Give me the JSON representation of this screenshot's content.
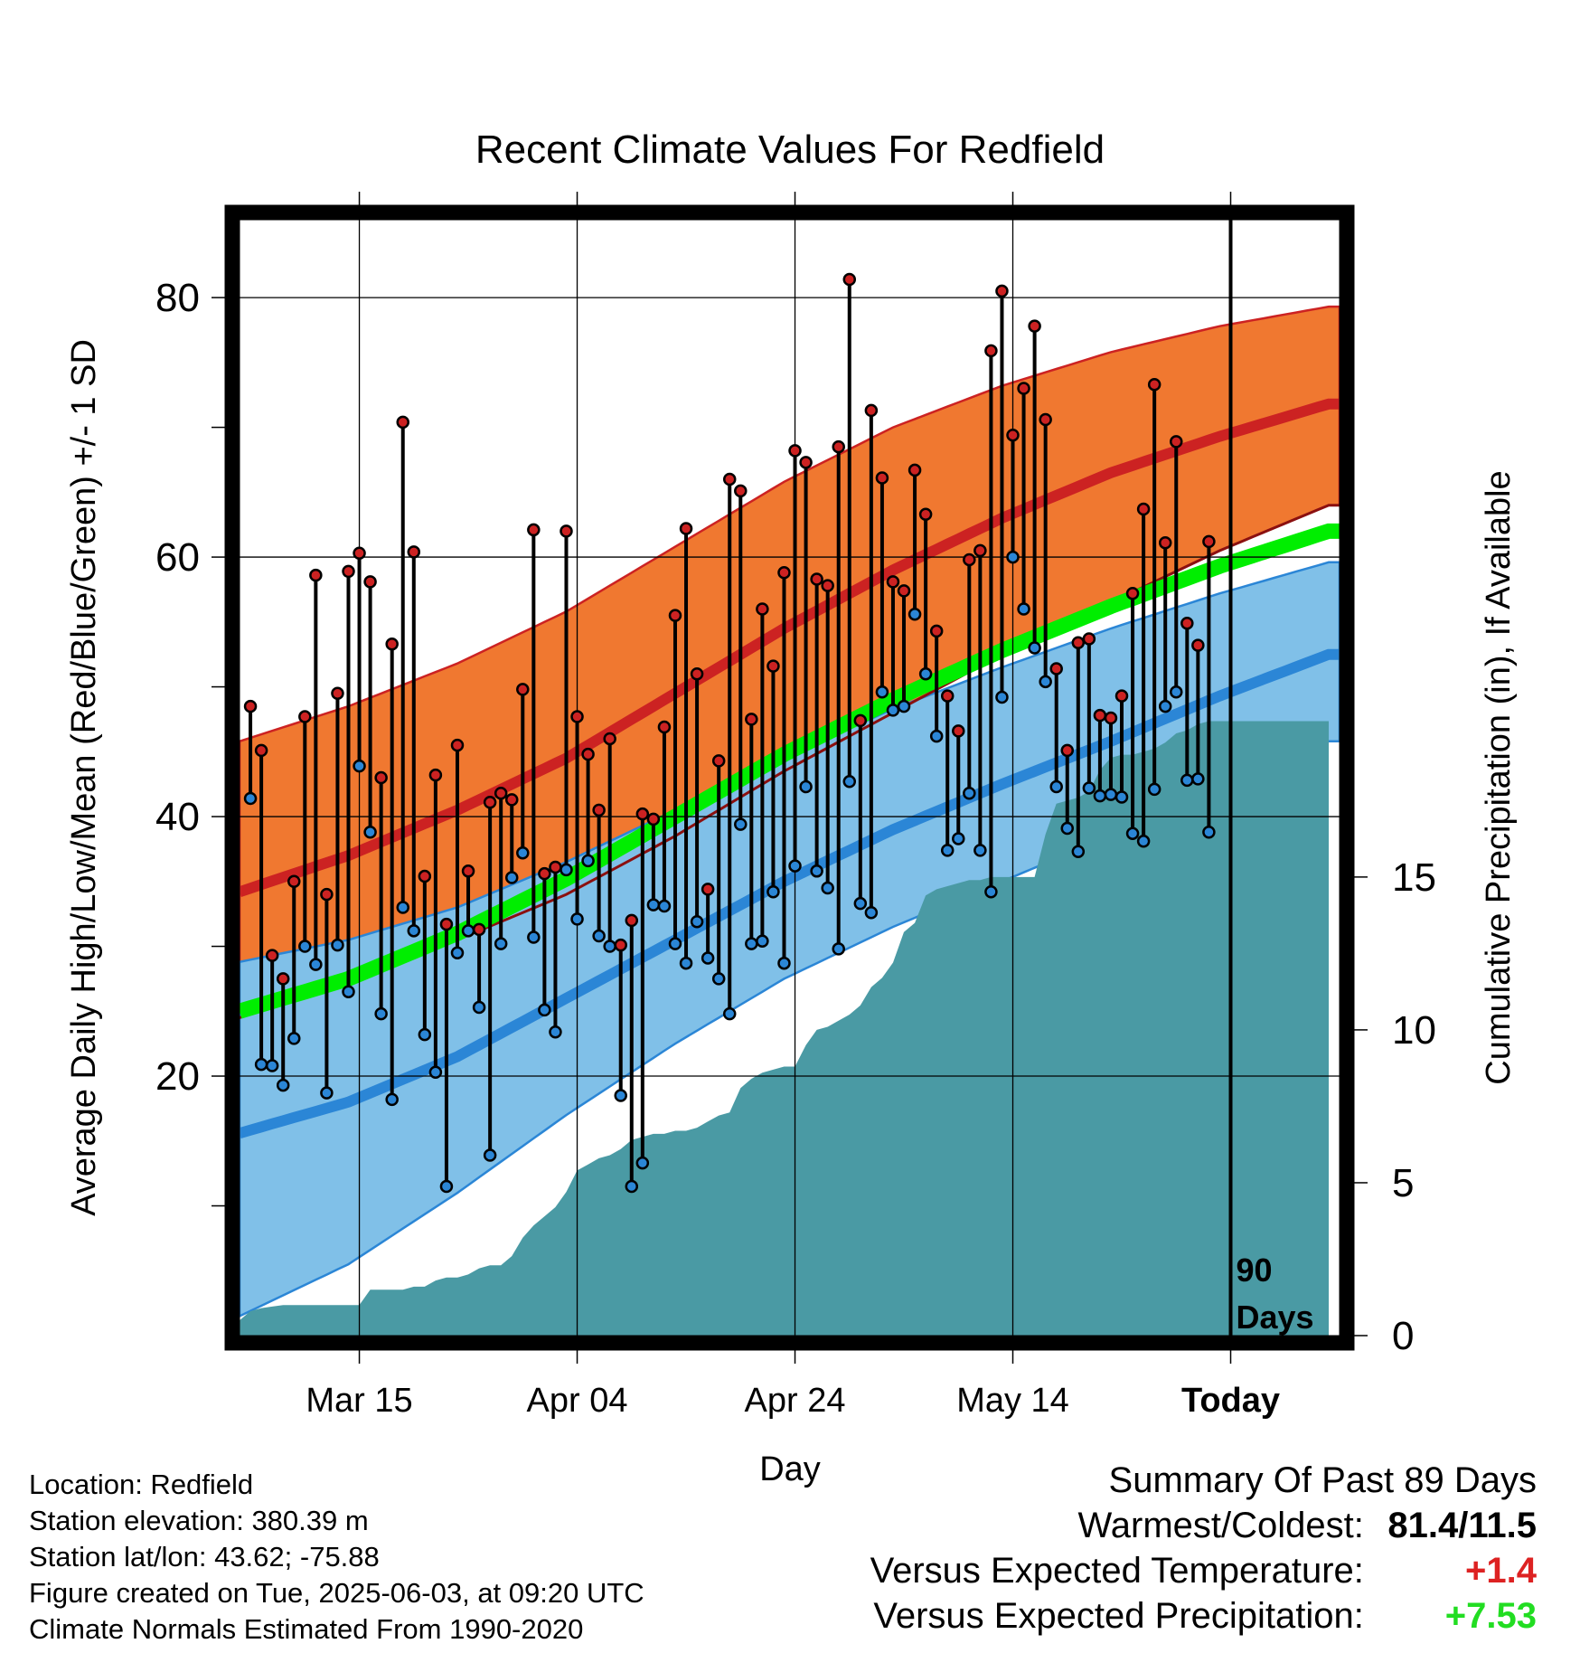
{
  "chart_data": {
    "type": "line",
    "title": "Recent Climate Values For Redfield",
    "xlabel": "Day",
    "ylabel": "Average Daily High/Low/Mean (Red/Blue/Green) +/- 1 SD",
    "y2label": "Cumulative Precipitation (in), If Available",
    "x_tick_labels": [
      "Mar 15",
      "Apr 04",
      "Apr 24",
      "May 14",
      "Today"
    ],
    "x_tick_days": [
      11,
      31,
      51,
      71,
      91
    ],
    "xlim": [
      0,
      101
    ],
    "ylim": [
      0,
      86
    ],
    "y_ticks": [
      20,
      40,
      60,
      80
    ],
    "y2lim": [
      0,
      36.5
    ],
    "y2_ticks": [
      0,
      5,
      10,
      15
    ],
    "today_day": 91,
    "today_annotation": "90\nDays",
    "grid": true,
    "normals_start_day": 0,
    "normals": {
      "days": [
        0,
        10,
        20,
        30,
        40,
        50,
        60,
        70,
        80,
        90,
        100
      ],
      "high_mean": [
        34.2,
        37.0,
        40.5,
        44.5,
        49.5,
        54.5,
        59.0,
        63.0,
        66.5,
        69.3,
        71.8
      ],
      "high_upper": [
        45.8,
        48.5,
        51.8,
        55.8,
        60.8,
        65.8,
        70.0,
        73.2,
        75.8,
        77.8,
        79.3
      ],
      "high_lower": [
        24.5,
        27.5,
        30.5,
        34.0,
        38.5,
        43.5,
        48.0,
        52.5,
        56.5,
        60.5,
        64.0
      ],
      "low_mean": [
        15.6,
        18.0,
        21.5,
        26.0,
        30.5,
        35.0,
        39.0,
        42.5,
        45.8,
        49.3,
        52.5
      ],
      "low_upper": [
        28.8,
        30.5,
        33.0,
        36.5,
        40.5,
        44.5,
        48.3,
        51.5,
        54.5,
        57.2,
        59.6
      ],
      "low_lower": [
        1.5,
        5.5,
        11.0,
        17.0,
        22.5,
        27.5,
        31.5,
        35.0,
        38.5,
        42.0,
        45.8
      ],
      "avg_mean": [
        25.0,
        27.5,
        31.0,
        35.2,
        40.0,
        44.8,
        49.0,
        52.8,
        56.2,
        59.3,
        62.0
      ]
    },
    "series": [
      {
        "name": "High",
        "color": "#cc2222",
        "x": [
          1,
          2,
          3,
          4,
          5,
          6,
          7,
          8,
          9,
          10,
          11,
          12,
          13,
          14,
          15,
          16,
          17,
          18,
          19,
          20,
          21,
          22,
          23,
          24,
          25,
          26,
          27,
          28,
          29,
          30,
          31,
          32,
          33,
          34,
          35,
          36,
          37,
          38,
          39,
          40,
          41,
          42,
          43,
          44,
          45,
          46,
          47,
          48,
          49,
          50,
          51,
          52,
          53,
          54,
          55,
          56,
          57,
          58,
          59,
          60,
          61,
          62,
          63,
          64,
          65,
          66,
          67,
          68,
          69,
          70,
          71,
          72,
          73,
          74,
          75,
          76,
          77,
          78,
          79,
          80,
          81,
          82,
          83,
          84,
          85,
          86,
          87,
          88,
          89
        ],
        "values": [
          48.5,
          45.1,
          29.3,
          27.5,
          35.0,
          47.7,
          58.6,
          34.0,
          49.5,
          58.9,
          60.3,
          58.1,
          43.0,
          53.3,
          70.4,
          60.4,
          35.4,
          43.2,
          31.7,
          45.5,
          35.8,
          31.3,
          41.1,
          41.8,
          41.3,
          49.8,
          62.1,
          35.6,
          36.1,
          62.0,
          47.7,
          44.8,
          40.5,
          46.0,
          30.1,
          32.0,
          40.2,
          39.8,
          46.9,
          55.5,
          62.2,
          51.0,
          34.4,
          44.3,
          66.0,
          65.1,
          47.5,
          56.0,
          51.6,
          58.8,
          68.2,
          67.3,
          58.3,
          57.8,
          68.5,
          81.4,
          47.4,
          71.3,
          66.1,
          58.1,
          57.4,
          66.7,
          63.3,
          54.3,
          49.3,
          46.6,
          59.8,
          60.5,
          75.9,
          80.5,
          69.4,
          73.0,
          77.8,
          70.6,
          51.4,
          45.1,
          53.4,
          53.7,
          47.8,
          47.6,
          49.3,
          57.2,
          63.7,
          73.3,
          61.1,
          68.9,
          54.9,
          53.2,
          61.2
        ]
      },
      {
        "name": "Low",
        "color": "#2b86d6",
        "x": [
          1,
          2,
          3,
          4,
          5,
          6,
          7,
          8,
          9,
          10,
          11,
          12,
          13,
          14,
          15,
          16,
          17,
          18,
          19,
          20,
          21,
          22,
          23,
          24,
          25,
          26,
          27,
          28,
          29,
          30,
          31,
          32,
          33,
          34,
          35,
          36,
          37,
          38,
          39,
          40,
          41,
          42,
          43,
          44,
          45,
          46,
          47,
          48,
          49,
          50,
          51,
          52,
          53,
          54,
          55,
          56,
          57,
          58,
          59,
          60,
          61,
          62,
          63,
          64,
          65,
          66,
          67,
          68,
          69,
          70,
          71,
          72,
          73,
          74,
          75,
          76,
          77,
          78,
          79,
          80,
          81,
          82,
          83,
          84,
          85,
          86,
          87,
          88,
          89
        ],
        "values": [
          41.4,
          20.9,
          20.8,
          19.3,
          22.9,
          30.0,
          28.6,
          18.7,
          30.1,
          26.5,
          43.9,
          38.8,
          24.8,
          18.2,
          33.0,
          31.2,
          23.2,
          20.3,
          11.5,
          29.5,
          31.2,
          25.3,
          13.9,
          30.2,
          35.3,
          37.2,
          30.7,
          25.1,
          23.4,
          35.9,
          32.1,
          36.6,
          30.8,
          30.0,
          18.5,
          11.5,
          13.3,
          33.2,
          33.1,
          30.2,
          28.7,
          31.9,
          29.1,
          27.5,
          24.8,
          39.4,
          30.2,
          30.4,
          34.2,
          28.7,
          36.2,
          42.3,
          35.8,
          34.5,
          29.8,
          42.7,
          33.3,
          32.6,
          49.6,
          48.2,
          48.5,
          55.6,
          51.0,
          46.2,
          37.4,
          38.3,
          41.8,
          37.4,
          34.2,
          49.2,
          60.0,
          56.0,
          53.0,
          50.4,
          42.3,
          39.1,
          37.3,
          42.2,
          41.6,
          41.7,
          41.5,
          38.7,
          38.1,
          42.1,
          48.5,
          49.6,
          42.8,
          42.9,
          38.8
        ]
      }
    ],
    "precip": {
      "name": "Cumulative Precipitation",
      "color": "#4a9aa4",
      "x": [
        0,
        1,
        2,
        3,
        4,
        5,
        6,
        7,
        8,
        9,
        10,
        11,
        12,
        13,
        14,
        15,
        16,
        17,
        18,
        19,
        20,
        21,
        22,
        23,
        24,
        25,
        26,
        27,
        28,
        29,
        30,
        31,
        32,
        33,
        34,
        35,
        36,
        37,
        38,
        39,
        40,
        41,
        42,
        43,
        44,
        45,
        46,
        47,
        48,
        49,
        50,
        51,
        52,
        53,
        54,
        55,
        56,
        57,
        58,
        59,
        60,
        61,
        62,
        63,
        64,
        65,
        66,
        67,
        68,
        69,
        70,
        71,
        72,
        73,
        74,
        75,
        76,
        77,
        78,
        79,
        80,
        81,
        82,
        83,
        84,
        85,
        86,
        87,
        88,
        89,
        90,
        91,
        92,
        93,
        94,
        95,
        96,
        97,
        98,
        99,
        100
      ],
      "values": [
        0.5,
        0.8,
        0.9,
        0.95,
        1.0,
        1.0,
        1.0,
        1.0,
        1.0,
        1.0,
        1.0,
        1.0,
        1.5,
        1.5,
        1.5,
        1.5,
        1.6,
        1.6,
        1.8,
        1.9,
        1.9,
        2.0,
        2.2,
        2.3,
        2.3,
        2.6,
        3.2,
        3.6,
        3.9,
        4.2,
        4.7,
        5.4,
        5.6,
        5.8,
        5.9,
        6.1,
        6.4,
        6.5,
        6.6,
        6.6,
        6.7,
        6.7,
        6.8,
        7.0,
        7.2,
        7.3,
        8.1,
        8.4,
        8.6,
        8.7,
        8.8,
        8.8,
        9.5,
        10.0,
        10.1,
        10.3,
        10.5,
        10.8,
        11.4,
        11.7,
        12.2,
        13.2,
        13.5,
        14.4,
        14.6,
        14.7,
        14.8,
        14.9,
        14.9,
        15.0,
        15.0,
        15.0,
        15.0,
        15.0,
        16.4,
        17.4,
        17.5,
        17.6,
        17.8,
        18.5,
        18.9,
        19.0,
        19.0,
        19.1,
        19.2,
        19.4,
        19.7,
        19.8,
        20.0,
        20.1,
        20.1,
        20.1,
        20.1,
        20.1,
        20.1,
        20.1,
        20.1,
        20.1,
        20.1,
        20.1,
        20.1
      ]
    }
  },
  "footer": {
    "location": "Location: Redfield",
    "elevation": "Station elevation: 380.39 m",
    "latlon": "Station lat/lon: 43.62; -75.88",
    "created": "Figure created on Tue, 2025-06-03, at 09:20 UTC",
    "normals": "Climate Normals Estimated From 1990-2020"
  },
  "summary": {
    "title": "Summary Of Past 89 Days",
    "warm_cold_label": "Warmest/Coldest:",
    "warm_cold_value": "81.4/11.5",
    "temp_label": "Versus Expected Temperature:",
    "temp_value": "+1.4",
    "temp_color": "#dd2222",
    "precip_label": "Versus Expected Precipitation:",
    "precip_value": "+7.53",
    "precip_color": "#22dd22"
  },
  "colors": {
    "high_band": "#f07830",
    "high_line": "#cc2222",
    "low_band": "#80c0e8",
    "low_line": "#2b86d6",
    "mean_line": "#00ee00",
    "precip": "#4a9aa4",
    "frame": "#000000"
  }
}
